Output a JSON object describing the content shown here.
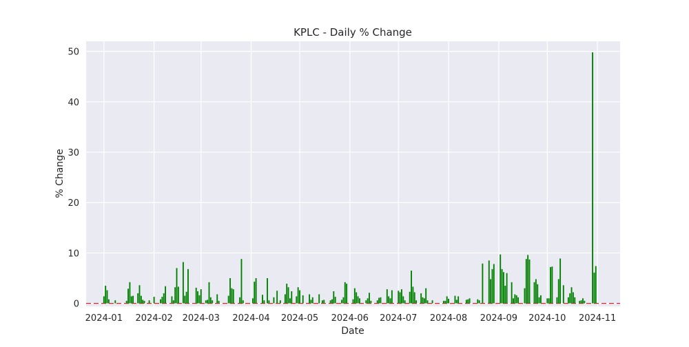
{
  "chart_data": {
    "type": "bar",
    "title": "KPLC - Daily % Change",
    "xlabel": "Date",
    "ylabel": "% Change",
    "ylim": [
      -0.6,
      52
    ],
    "xlim": [
      "2023-12-21",
      "2024-11-15"
    ],
    "x_ticks": [
      "2024-01",
      "2024-02",
      "2024-03",
      "2024-04",
      "2024-05",
      "2024-06",
      "2024-07",
      "2024-08",
      "2024-09",
      "2024-10",
      "2024-11"
    ],
    "y_ticks": [
      0,
      10,
      20,
      30,
      40,
      50
    ],
    "grid": true,
    "legend": "none",
    "bar_color": "#008000",
    "reference_line": {
      "y": 0,
      "color": "#d62728",
      "style": "dashed"
    },
    "background_color": "#eaeaf2",
    "points": [
      [
        "2024-01-01",
        1.4
      ],
      [
        "2024-01-02",
        3.5
      ],
      [
        "2024-01-03",
        2.6
      ],
      [
        "2024-01-04",
        0.8
      ],
      [
        "2024-01-08",
        0.6
      ],
      [
        "2024-01-15",
        0.5
      ],
      [
        "2024-01-16",
        2.9
      ],
      [
        "2024-01-17",
        4.2
      ],
      [
        "2024-01-18",
        1.4
      ],
      [
        "2024-01-19",
        1.5
      ],
      [
        "2024-01-22",
        2.0
      ],
      [
        "2024-01-23",
        3.6
      ],
      [
        "2024-01-24",
        1.5
      ],
      [
        "2024-01-25",
        0.7
      ],
      [
        "2024-01-26",
        0.5
      ],
      [
        "2024-01-29",
        0.6
      ],
      [
        "2024-02-01",
        1.3
      ],
      [
        "2024-02-05",
        0.8
      ],
      [
        "2024-02-06",
        1.3
      ],
      [
        "2024-02-07",
        2.0
      ],
      [
        "2024-02-08",
        3.4
      ],
      [
        "2024-02-12",
        1.4
      ],
      [
        "2024-02-13",
        0.6
      ],
      [
        "2024-02-14",
        3.2
      ],
      [
        "2024-02-15",
        7.0
      ],
      [
        "2024-02-16",
        3.3
      ],
      [
        "2024-02-19",
        8.2
      ],
      [
        "2024-02-20",
        1.5
      ],
      [
        "2024-02-21",
        2.3
      ],
      [
        "2024-02-22",
        6.8
      ],
      [
        "2024-02-27",
        3.1
      ],
      [
        "2024-02-28",
        2.4
      ],
      [
        "2024-02-29",
        1.6
      ],
      [
        "2024-03-01",
        2.8
      ],
      [
        "2024-03-04",
        0.6
      ],
      [
        "2024-03-05",
        0.7
      ],
      [
        "2024-03-06",
        4.2
      ],
      [
        "2024-03-07",
        1.2
      ],
      [
        "2024-03-08",
        0.6
      ],
      [
        "2024-03-11",
        1.8
      ],
      [
        "2024-03-12",
        0.5
      ],
      [
        "2024-03-18",
        1.5
      ],
      [
        "2024-03-19",
        5.0
      ],
      [
        "2024-03-20",
        3.0
      ],
      [
        "2024-03-21",
        2.8
      ],
      [
        "2024-03-25",
        1.2
      ],
      [
        "2024-03-26",
        8.8
      ],
      [
        "2024-03-27",
        0.6
      ],
      [
        "2024-04-02",
        1.0
      ],
      [
        "2024-04-03",
        4.3
      ],
      [
        "2024-04-04",
        5.0
      ],
      [
        "2024-04-08",
        1.7
      ],
      [
        "2024-04-09",
        0.6
      ],
      [
        "2024-04-11",
        5.0
      ],
      [
        "2024-04-12",
        0.6
      ],
      [
        "2024-04-15",
        1.2
      ],
      [
        "2024-04-17",
        2.5
      ],
      [
        "2024-04-19",
        0.6
      ],
      [
        "2024-04-22",
        1.8
      ],
      [
        "2024-04-23",
        3.9
      ],
      [
        "2024-04-24",
        3.2
      ],
      [
        "2024-04-25",
        1.0
      ],
      [
        "2024-04-26",
        2.4
      ],
      [
        "2024-04-29",
        1.4
      ],
      [
        "2024-04-30",
        3.2
      ],
      [
        "2024-05-01",
        2.6
      ],
      [
        "2024-05-03",
        1.6
      ],
      [
        "2024-05-07",
        1.8
      ],
      [
        "2024-05-08",
        0.7
      ],
      [
        "2024-05-09",
        1.2
      ],
      [
        "2024-05-13",
        1.8
      ],
      [
        "2024-05-15",
        0.6
      ],
      [
        "2024-05-16",
        0.7
      ],
      [
        "2024-05-20",
        0.6
      ],
      [
        "2024-05-21",
        0.8
      ],
      [
        "2024-05-22",
        2.4
      ],
      [
        "2024-05-23",
        1.3
      ],
      [
        "2024-05-27",
        0.7
      ],
      [
        "2024-05-28",
        1.2
      ],
      [
        "2024-05-29",
        4.2
      ],
      [
        "2024-05-30",
        3.9
      ],
      [
        "2024-06-03",
        0.8
      ],
      [
        "2024-06-04",
        3.0
      ],
      [
        "2024-06-05",
        2.2
      ],
      [
        "2024-06-06",
        1.4
      ],
      [
        "2024-06-07",
        1.0
      ],
      [
        "2024-06-11",
        0.6
      ],
      [
        "2024-06-12",
        1.0
      ],
      [
        "2024-06-13",
        2.1
      ],
      [
        "2024-06-14",
        0.5
      ],
      [
        "2024-06-18",
        0.6
      ],
      [
        "2024-06-19",
        1.1
      ],
      [
        "2024-06-20",
        1.2
      ],
      [
        "2024-06-24",
        2.8
      ],
      [
        "2024-06-25",
        1.4
      ],
      [
        "2024-06-26",
        1.0
      ],
      [
        "2024-06-27",
        2.6
      ],
      [
        "2024-07-01",
        2.5
      ],
      [
        "2024-07-02",
        2.2
      ],
      [
        "2024-07-03",
        2.8
      ],
      [
        "2024-07-04",
        1.4
      ],
      [
        "2024-07-05",
        0.6
      ],
      [
        "2024-07-08",
        2.3
      ],
      [
        "2024-07-09",
        6.5
      ],
      [
        "2024-07-10",
        3.3
      ],
      [
        "2024-07-11",
        2.2
      ],
      [
        "2024-07-12",
        0.6
      ],
      [
        "2024-07-15",
        2.0
      ],
      [
        "2024-07-16",
        1.2
      ],
      [
        "2024-07-17",
        1.0
      ],
      [
        "2024-07-18",
        3.0
      ],
      [
        "2024-07-19",
        0.6
      ],
      [
        "2024-07-22",
        0.6
      ],
      [
        "2024-07-29",
        0.5
      ],
      [
        "2024-07-30",
        0.5
      ],
      [
        "2024-07-31",
        1.4
      ],
      [
        "2024-08-01",
        0.9
      ],
      [
        "2024-08-05",
        1.5
      ],
      [
        "2024-08-06",
        0.7
      ],
      [
        "2024-08-07",
        1.4
      ],
      [
        "2024-08-12",
        0.7
      ],
      [
        "2024-08-13",
        0.8
      ],
      [
        "2024-08-14",
        1.0
      ],
      [
        "2024-08-19",
        0.8
      ],
      [
        "2024-08-20",
        0.6
      ],
      [
        "2024-08-22",
        7.9
      ],
      [
        "2024-08-26",
        8.5
      ],
      [
        "2024-08-27",
        4.8
      ],
      [
        "2024-08-28",
        6.8
      ],
      [
        "2024-08-29",
        7.8
      ],
      [
        "2024-09-02",
        9.7
      ],
      [
        "2024-09-03",
        6.8
      ],
      [
        "2024-09-04",
        6.2
      ],
      [
        "2024-09-05",
        3.5
      ],
      [
        "2024-09-06",
        6.0
      ],
      [
        "2024-09-09",
        4.2
      ],
      [
        "2024-09-10",
        1.0
      ],
      [
        "2024-09-11",
        1.8
      ],
      [
        "2024-09-12",
        1.6
      ],
      [
        "2024-09-13",
        1.2
      ],
      [
        "2024-09-17",
        3.0
      ],
      [
        "2024-09-18",
        8.8
      ],
      [
        "2024-09-19",
        9.6
      ],
      [
        "2024-09-20",
        8.7
      ],
      [
        "2024-09-23",
        4.2
      ],
      [
        "2024-09-24",
        4.8
      ],
      [
        "2024-09-25",
        3.8
      ],
      [
        "2024-09-26",
        1.2
      ],
      [
        "2024-09-27",
        1.6
      ],
      [
        "2024-10-01",
        1.0
      ],
      [
        "2024-10-02",
        1.0
      ],
      [
        "2024-10-03",
        7.2
      ],
      [
        "2024-10-04",
        7.3
      ],
      [
        "2024-10-07",
        1.2
      ],
      [
        "2024-10-08",
        4.8
      ],
      [
        "2024-10-09",
        8.9
      ],
      [
        "2024-10-11",
        3.6
      ],
      [
        "2024-10-14",
        1.2
      ],
      [
        "2024-10-15",
        2.0
      ],
      [
        "2024-10-16",
        3.2
      ],
      [
        "2024-10-17",
        2.2
      ],
      [
        "2024-10-18",
        1.2
      ],
      [
        "2024-10-21",
        0.5
      ],
      [
        "2024-10-22",
        0.6
      ],
      [
        "2024-10-23",
        1.0
      ],
      [
        "2024-10-24",
        0.5
      ],
      [
        "2024-10-29",
        49.8
      ],
      [
        "2024-10-30",
        6.1
      ],
      [
        "2024-10-31",
        7.4
      ]
    ]
  }
}
